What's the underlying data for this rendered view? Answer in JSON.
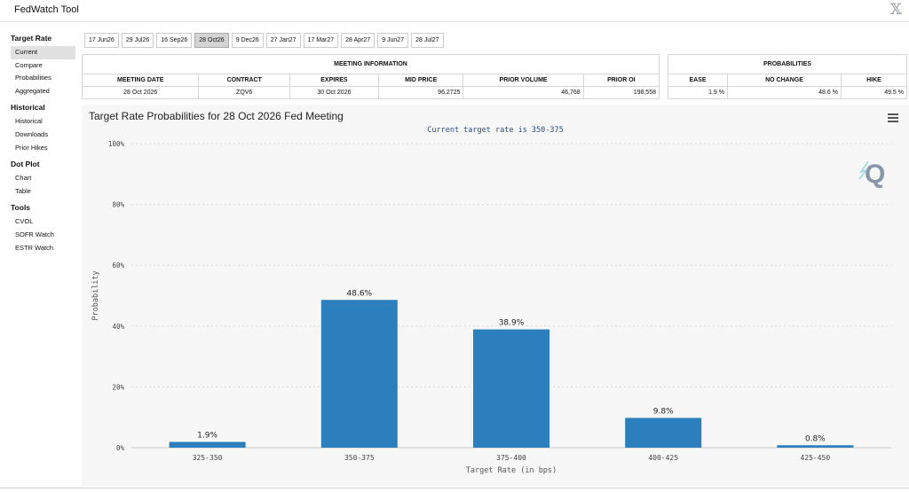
{
  "app": {
    "title": "FedWatch Tool"
  },
  "sidebar": {
    "sections": [
      {
        "title": "Target Rate",
        "items": [
          "Current",
          "Compare",
          "Probabilities",
          "Aggregated"
        ]
      },
      {
        "title": "Historical",
        "items": [
          "Historical",
          "Downloads",
          "Prior Hikes"
        ]
      },
      {
        "title": "Dot Plot",
        "items": [
          "Chart",
          "Table"
        ]
      },
      {
        "title": "Tools",
        "items": [
          "CVOL",
          "SOFR Watch",
          "ESTR Watch"
        ]
      }
    ],
    "active_item": "Current"
  },
  "date_tabs": [
    "17 Jun26",
    "29 Jul26",
    "16 Sep26",
    "28 Oct26",
    "9 Dec26",
    "27 Jan27",
    "17 Mar27",
    "28 Apr27",
    "9 Jun27",
    "28 Jul27"
  ],
  "active_date_tab": "28 Oct26",
  "meeting_info": {
    "heading": "MEETING INFORMATION",
    "columns": [
      "MEETING DATE",
      "CONTRACT",
      "EXPIRES",
      "MID PRICE",
      "PRIOR VOLUME",
      "PRIOR OI"
    ],
    "row": [
      "28 Oct 2026",
      "ZQV6",
      "30 Oct 2026",
      "96.2725",
      "46,768",
      "198,558"
    ]
  },
  "probabilities": {
    "heading": "PROBABILITIES",
    "columns": [
      "EASE",
      "NO CHANGE",
      "HIKE"
    ],
    "row": [
      "1.9 %",
      "48.6 %",
      "49.5 %"
    ]
  },
  "chart": {
    "title": "Target Rate Probabilities for 28 Oct 2026 Fed Meeting",
    "subtitle": "Current target rate is 350-375",
    "bar_color": "#2b7fbc"
  },
  "chart_data": {
    "type": "bar",
    "categories": [
      "325-350",
      "350-375",
      "375-400",
      "400-425",
      "425-450"
    ],
    "values": [
      1.9,
      48.6,
      38.9,
      9.8,
      0.8
    ],
    "data_labels": [
      "1.9%",
      "48.6%",
      "38.9%",
      "9.8%",
      "0.8%"
    ],
    "xlabel": "Target Rate (in bps)",
    "ylabel": "Probability",
    "ylim": [
      0,
      100
    ],
    "yticks": [
      "0%",
      "20%",
      "40%",
      "60%",
      "80%",
      "100%"
    ],
    "grid": true
  }
}
